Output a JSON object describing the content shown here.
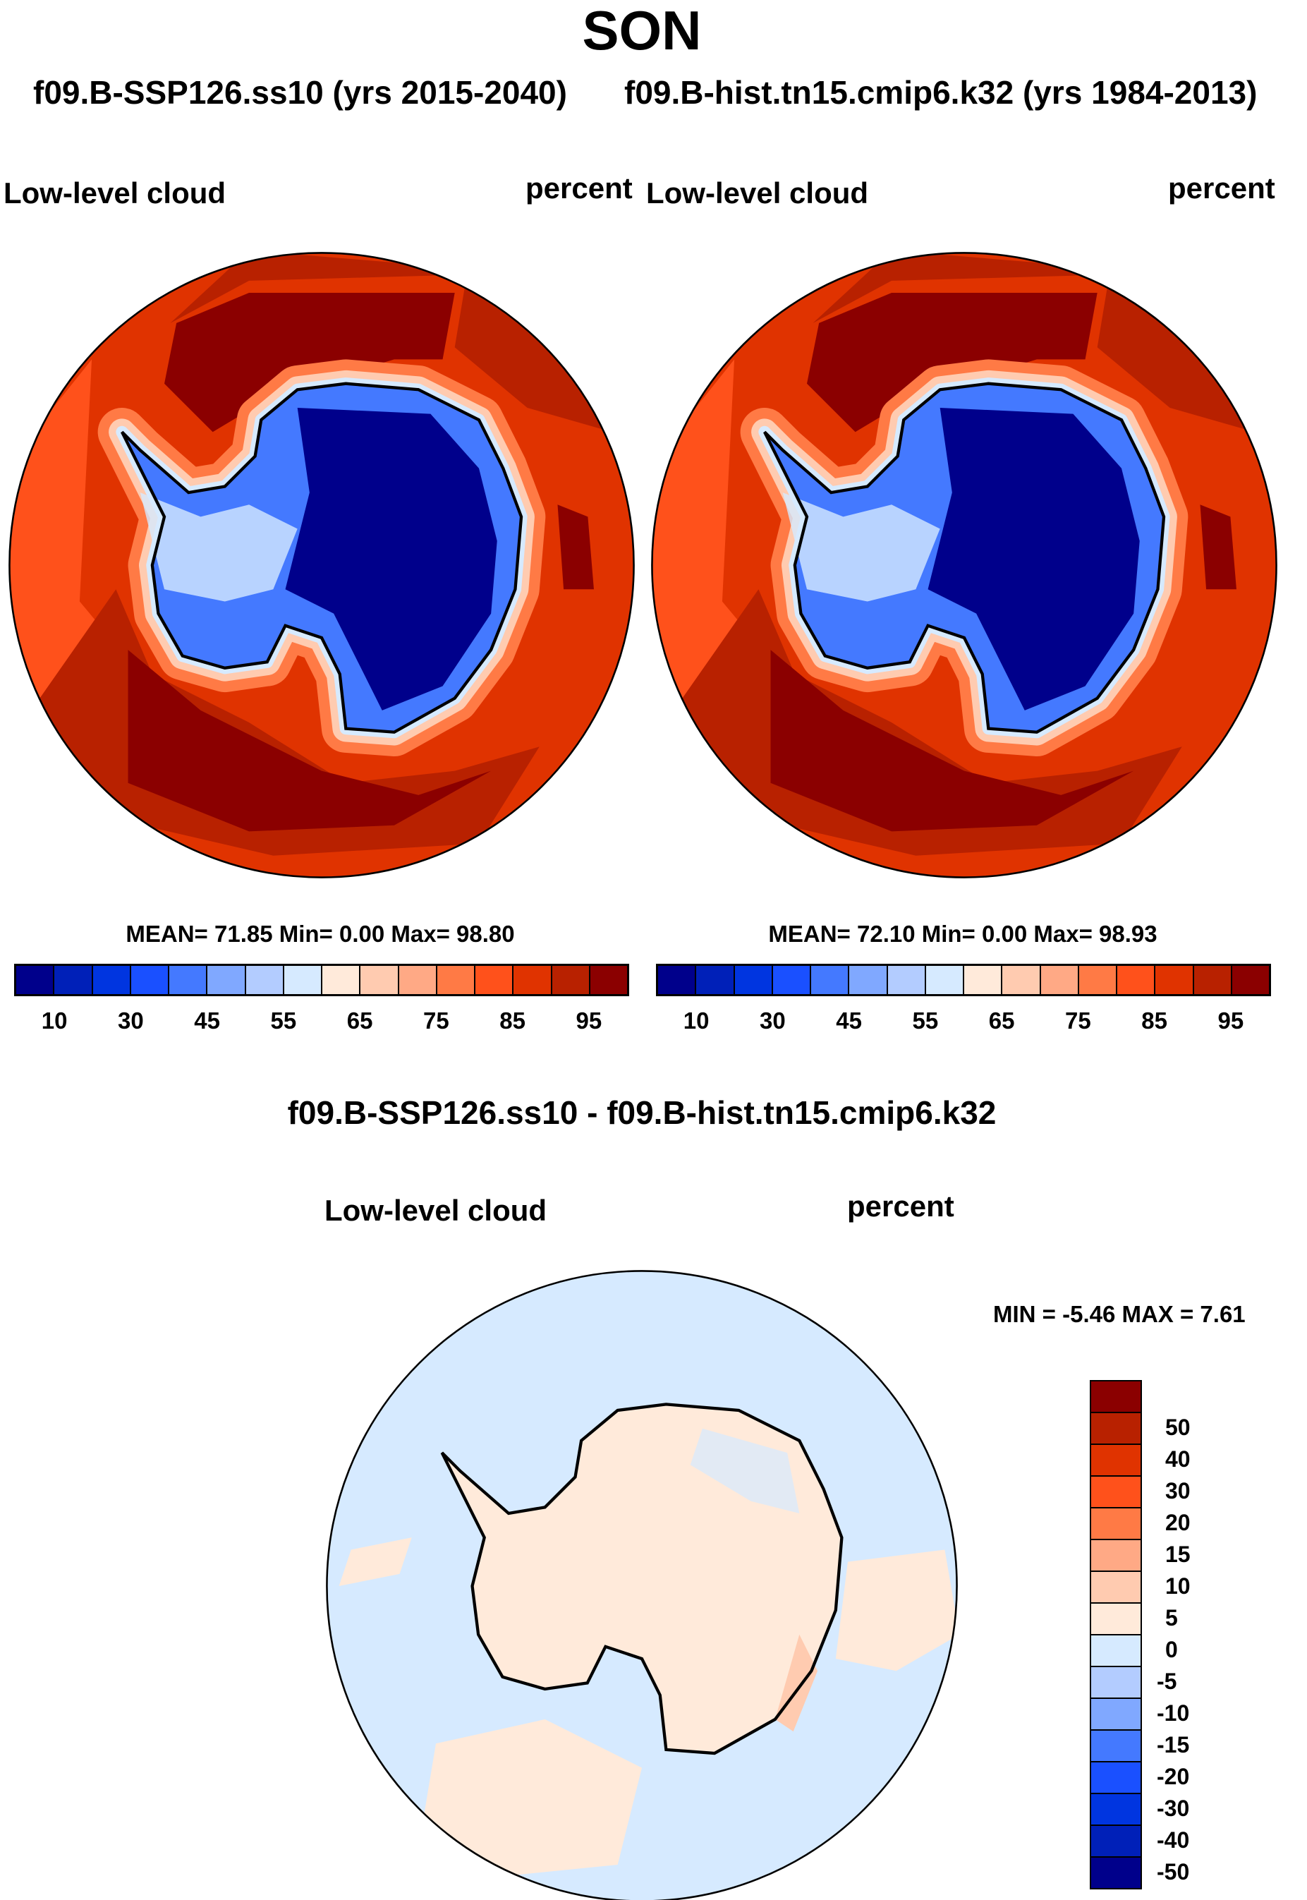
{
  "title": "SON",
  "subtitle_left": "f09.B-SSP126.ss10 (yrs 2015-2040)",
  "subtitle_right": "f09.B-hist.tn15.cmip6.k32 (yrs 1984-2013)",
  "diff_title": "f09.B-SSP126.ss10 - f09.B-hist.tn15.cmip6.k32",
  "chart_data": [
    {
      "type": "heatmap",
      "projection": "south-polar stereographic",
      "variable": "Low-level cloud",
      "units": "percent",
      "stats": "MEAN=  71.85  Min=   0.00  Max=  98.80",
      "mean": 71.85,
      "min": 0.0,
      "max": 98.8,
      "levels": [
        10,
        20,
        30,
        40,
        45,
        50,
        55,
        60,
        65,
        70,
        75,
        80,
        85,
        90,
        95
      ],
      "tick_labels": [
        "10",
        "30",
        "45",
        "55",
        "65",
        "75",
        "85",
        "95"
      ]
    },
    {
      "type": "heatmap",
      "projection": "south-polar stereographic",
      "variable": "Low-level cloud",
      "units": "percent",
      "stats": "MEAN=  72.10  Min=   0.00  Max=  98.93",
      "mean": 72.1,
      "min": 0.0,
      "max": 98.93,
      "levels": [
        10,
        20,
        30,
        40,
        45,
        50,
        55,
        60,
        65,
        70,
        75,
        80,
        85,
        90,
        95
      ],
      "tick_labels": [
        "10",
        "30",
        "45",
        "55",
        "65",
        "75",
        "85",
        "95"
      ]
    },
    {
      "type": "heatmap",
      "projection": "south-polar stereographic",
      "variable": "Low-level cloud",
      "units": "percent",
      "stats": "MIN =  -5.46 MAX =   7.61",
      "min": -5.46,
      "max": 7.61,
      "levels": [
        -50,
        -40,
        -30,
        -20,
        -15,
        -10,
        -5,
        0,
        5,
        10,
        15,
        20,
        30,
        40,
        50
      ],
      "tick_labels": [
        "50",
        "40",
        "30",
        "20",
        "15",
        "10",
        "5",
        "0",
        "-5",
        "-10",
        "-15",
        "-20",
        "-30",
        "-40",
        "-50"
      ]
    }
  ],
  "colors": [
    "#00008b",
    "#0020b8",
    "#0035e0",
    "#1a50ff",
    "#4479ff",
    "#80a8ff",
    "#b3ccff",
    "#d6eaff",
    "#ffeada",
    "#ffcbb0",
    "#ffa985",
    "#ff7a45",
    "#ff511b",
    "#e03300",
    "#b82100",
    "#8b0000"
  ]
}
